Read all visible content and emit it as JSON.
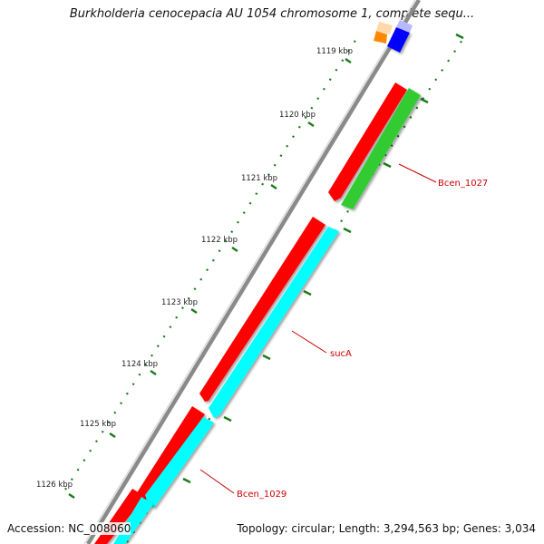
{
  "header": {
    "title": "Burkholderia cenocepacia AU 1054 chromosome 1, complete sequ..."
  },
  "footer": {
    "accession": "Accession: NC_008060",
    "summary": "Topology: circular; Length: 3,294,563 bp; Genes: 3,034"
  },
  "ruler": {
    "tick_labels": [
      "1119 kbp",
      "1120 kbp",
      "1121 kbp",
      "1122 kbp",
      "1123 kbp",
      "1124 kbp",
      "1125 kbp",
      "1126 kbp"
    ],
    "tick_color": "#1a7a1a"
  },
  "gene_labels": [
    "Bcen_1027",
    "sucA",
    "Bcen_1029"
  ],
  "colors": {
    "forward_cds": "#ff0000",
    "reverse_cds": "#00ffff",
    "reverse_cds_alt": "#33cc33",
    "backbone": "#8a8a8a",
    "label": "#cc0000"
  }
}
